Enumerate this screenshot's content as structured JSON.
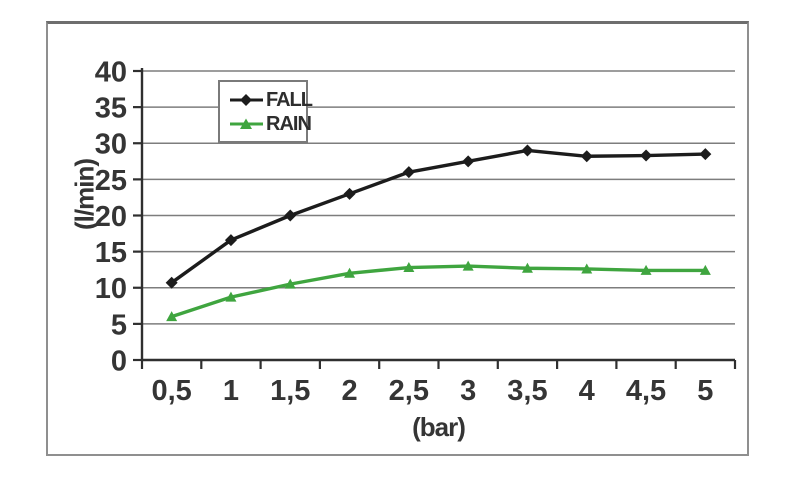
{
  "chart_data": {
    "type": "line",
    "x": [
      0.5,
      1,
      1.5,
      2,
      2.5,
      3,
      3.5,
      4,
      4.5,
      5
    ],
    "x_tick_labels": [
      "0,5",
      "1",
      "1,5",
      "2",
      "2,5",
      "3",
      "3,5",
      "4",
      "4,5",
      "5"
    ],
    "xlabel": "(bar)",
    "ylabel": "(l/min)",
    "ylim": [
      0,
      40
    ],
    "y_ticks": [
      0,
      5,
      10,
      15,
      20,
      25,
      30,
      35,
      40
    ],
    "y_tick_labels": [
      "0",
      "5",
      "10",
      "15",
      "20",
      "25",
      "30",
      "35",
      "40"
    ],
    "grid": true,
    "legend_position": "inside-top-center",
    "series": [
      {
        "name": "FALL",
        "color": "#1c1c1c",
        "marker": "diamond",
        "values": [
          10.7,
          16.6,
          20.0,
          23.0,
          26.0,
          27.5,
          29.0,
          28.2,
          28.3,
          28.5
        ]
      },
      {
        "name": "RAIN",
        "color": "#3fa53f",
        "marker": "triangle",
        "values": [
          6.0,
          8.7,
          10.5,
          12.0,
          12.8,
          13.0,
          12.7,
          12.6,
          12.4,
          12.4
        ]
      }
    ]
  },
  "colors": {
    "gridline": "#7d7d7d",
    "axis": "#2f2f2f",
    "tick_text": "#353535",
    "figure_border": "#8f8f8f",
    "background": "#ffffff"
  }
}
